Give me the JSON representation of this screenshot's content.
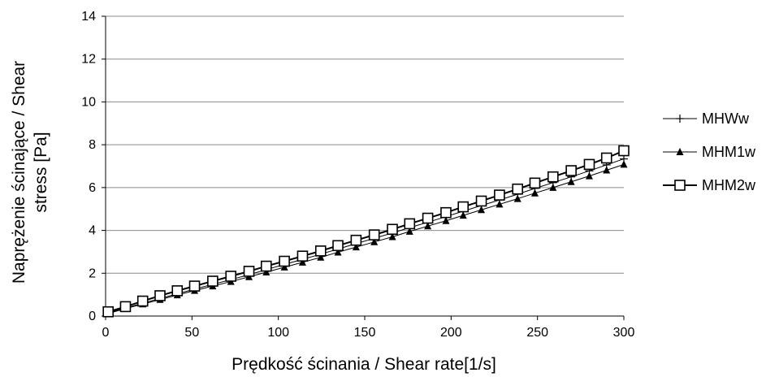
{
  "chart_data": {
    "type": "line",
    "xlabel": "Prędkość ścinania / Shear rate[1/s]",
    "ylabel_lines": [
      "Naprężenie ścinające / Shear",
      "stress [Pa]"
    ],
    "xlim": [
      0,
      300
    ],
    "ylim": [
      0,
      14
    ],
    "xticks": [
      "0",
      "50",
      "100",
      "150",
      "200",
      "250",
      "300"
    ],
    "yticks": [
      "0",
      "2",
      "4",
      "6",
      "8",
      "10",
      "12",
      "14"
    ],
    "grid": "horizontal",
    "legend_position": "right",
    "x": [
      1.5,
      11.5,
      21.5,
      31.5,
      41.5,
      51.5,
      62,
      72.5,
      83,
      93,
      103.5,
      114,
      124.5,
      134.5,
      145,
      155.5,
      166,
      176,
      186.5,
      197,
      207,
      217.5,
      228,
      238.5,
      248.5,
      259,
      269.5,
      280,
      290,
      300
    ],
    "series": [
      {
        "name": "MHWw",
        "marker": "plus",
        "color": "#000000",
        "values": [
          0.15,
          0.38,
          0.6,
          0.82,
          1.04,
          1.26,
          1.48,
          1.7,
          1.93,
          2.17,
          2.41,
          2.65,
          2.89,
          3.13,
          3.38,
          3.63,
          3.88,
          4.13,
          4.38,
          4.64,
          4.9,
          5.16,
          5.42,
          5.69,
          5.96,
          6.23,
          6.5,
          6.78,
          7.06,
          7.34
        ]
      },
      {
        "name": "MHM1w",
        "marker": "triangle",
        "color": "#000000",
        "values": [
          0.12,
          0.35,
          0.56,
          0.77,
          0.98,
          1.19,
          1.4,
          1.61,
          1.83,
          2.05,
          2.28,
          2.51,
          2.74,
          2.98,
          3.22,
          3.46,
          3.7,
          3.95,
          4.2,
          4.45,
          4.7,
          4.96,
          5.22,
          5.48,
          5.74,
          6.0,
          6.27,
          6.54,
          6.81,
          7.08
        ]
      },
      {
        "name": "MHM2w",
        "marker": "square",
        "color": "#000000",
        "values": [
          0.2,
          0.44,
          0.7,
          0.95,
          1.18,
          1.4,
          1.63,
          1.86,
          2.09,
          2.33,
          2.56,
          2.8,
          3.04,
          3.29,
          3.54,
          3.79,
          4.05,
          4.31,
          4.57,
          4.83,
          5.1,
          5.37,
          5.65,
          5.93,
          6.21,
          6.5,
          6.79,
          7.08,
          7.38,
          7.72
        ]
      }
    ]
  }
}
